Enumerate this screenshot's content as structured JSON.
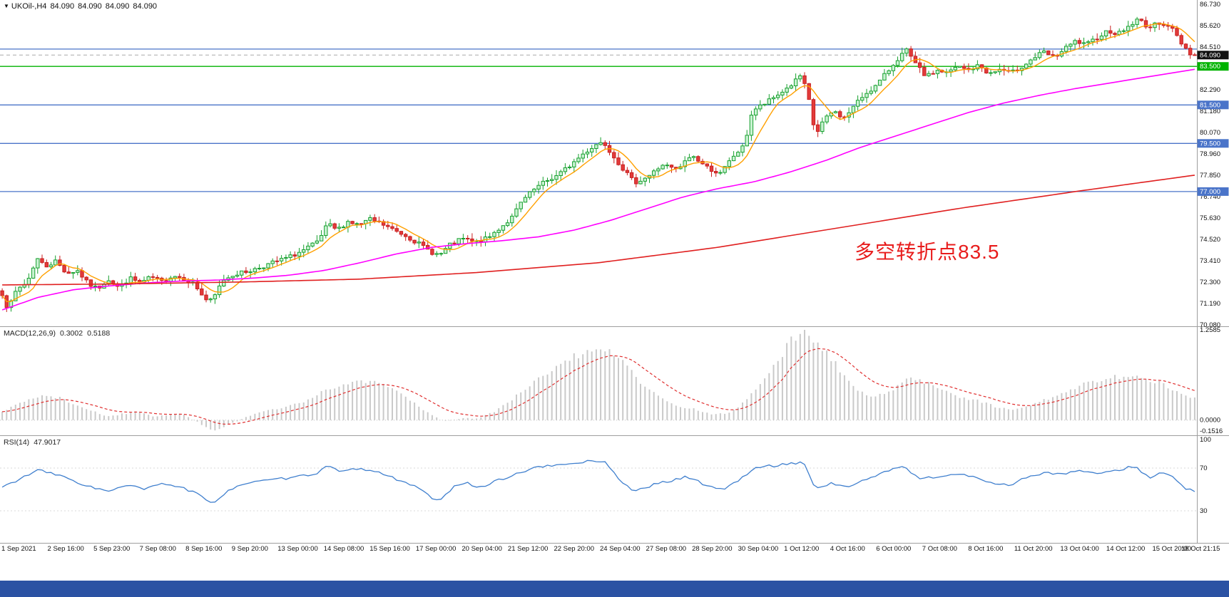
{
  "header": {
    "symbol": "UKOil-,H4",
    "open": "84.090",
    "high": "84.090",
    "low": "84.090",
    "close": "84.090"
  },
  "annotation": {
    "text": "多空转折点83.5",
    "color": "#e81c1c"
  },
  "chrome": {
    "bottom_bar_color": "#2b52a3",
    "separator_color": "#9e9e9e",
    "axis_border_color": "#9e9e9e"
  },
  "price_axis": {
    "ticks": [
      86.73,
      85.62,
      84.51,
      83.4,
      82.29,
      81.18,
      80.07,
      78.96,
      77.85,
      76.74,
      75.63,
      74.52,
      73.41,
      72.3,
      71.19,
      70.08
    ]
  },
  "price_panel": {
    "hlines": [
      {
        "price": 84.4,
        "color": "#4a74c9",
        "label": null,
        "label_bg": null
      },
      {
        "price": 83.5,
        "color": "#00b300",
        "label": "83.500",
        "label_bg": "#00b300"
      },
      {
        "price": 81.5,
        "color": "#4a74c9",
        "label": "81.500",
        "label_bg": "#4a74c9"
      },
      {
        "price": 79.5,
        "color": "#4a74c9",
        "label": "79.500",
        "label_bg": "#4a74c9"
      },
      {
        "price": 77.0,
        "color": "#4a74c9",
        "label": "77.000",
        "label_bg": "#4a74c9"
      }
    ],
    "current_price": {
      "value": 84.09,
      "label": "84.090",
      "label_bg": "#111111",
      "line_color": "#a8a8a8"
    },
    "ma_colors": {
      "fast": "#ffa000",
      "mid": "#ff00ff",
      "slow": "#e02020"
    },
    "candle_up_fill": "#c9f2d2",
    "candle_up_stroke": "#17a02e",
    "candle_down_fill": "#e23b3b",
    "candle_down_stroke": "#c91f1f"
  },
  "macd_panel": {
    "name": "MACD(12,26,9)",
    "value_main": "0.3002",
    "value_signal": "0.5188",
    "axis": [
      {
        "v": 1.2585,
        "label": "1.2585"
      },
      {
        "v": 0,
        "label": "0.0000"
      },
      {
        "v": -0.1516,
        "label": "-0.1516"
      }
    ],
    "bar_color": "#c9c9c9",
    "signal_color": "#e03030"
  },
  "rsi_panel": {
    "name": "RSI(14)",
    "value": "47.9017",
    "axis": [
      {
        "v": 100,
        "label": "100"
      },
      {
        "v": 70,
        "label": "70"
      },
      {
        "v": 30,
        "label": "30"
      }
    ],
    "levels": [
      70,
      30
    ],
    "line_color": "#3f7fce"
  },
  "time_axis": {
    "labels": [
      "1 Sep 2021",
      "2 Sep 16:00",
      "5 Sep 23:00",
      "7 Sep 08:00",
      "8 Sep 16:00",
      "9 Sep 20:00",
      "13 Sep 00:00",
      "14 Sep 08:00",
      "15 Sep 16:00",
      "17 Sep 00:00",
      "20 Sep 04:00",
      "21 Sep 12:00",
      "22 Sep 20:00",
      "24 Sep 04:00",
      "27 Sep 08:00",
      "28 Sep 20:00",
      "30 Sep 04:00",
      "1 Oct 12:00",
      "4 Oct 16:00",
      "6 Oct 00:00",
      "7 Oct 08:00",
      "8 Oct 16:00",
      "11 Oct 20:00",
      "13 Oct 04:00",
      "14 Oct 12:00",
      "15 Oct 20:00",
      "18 Oct 21:15"
    ]
  },
  "chart_data": {
    "type": "candlestick",
    "symbol": "UKOil-",
    "timeframe": "H4",
    "title": "UKOil-,H4 84.090 84.090 84.090 84.090",
    "last_price": 84.09,
    "price_range": {
      "min": 70.0,
      "max": 86.95
    },
    "candles_count": 270,
    "hline_levels": [
      84.4,
      83.5,
      81.5,
      79.5,
      77.0
    ],
    "price_path": [
      [
        0,
        71.7
      ],
      [
        0.005,
        70.85
      ],
      [
        0.012,
        71.9
      ],
      [
        0.021,
        72.3
      ],
      [
        0.029,
        73.55
      ],
      [
        0.036,
        73.1
      ],
      [
        0.045,
        73.4
      ],
      [
        0.054,
        72.75
      ],
      [
        0.063,
        72.9
      ],
      [
        0.072,
        72.2
      ],
      [
        0.08,
        71.95
      ],
      [
        0.089,
        72.45
      ],
      [
        0.098,
        72.0
      ],
      [
        0.107,
        72.5
      ],
      [
        0.116,
        72.25
      ],
      [
        0.125,
        72.55
      ],
      [
        0.134,
        72.3
      ],
      [
        0.143,
        72.65
      ],
      [
        0.152,
        72.5
      ],
      [
        0.161,
        72.2
      ],
      [
        0.17,
        71.4
      ],
      [
        0.176,
        71.3
      ],
      [
        0.185,
        72.4
      ],
      [
        0.194,
        72.7
      ],
      [
        0.206,
        72.85
      ],
      [
        0.218,
        73.1
      ],
      [
        0.229,
        73.35
      ],
      [
        0.241,
        73.6
      ],
      [
        0.253,
        73.95
      ],
      [
        0.265,
        74.4
      ],
      [
        0.273,
        75.3
      ],
      [
        0.281,
        75.0
      ],
      [
        0.29,
        75.45
      ],
      [
        0.299,
        75.25
      ],
      [
        0.308,
        75.55
      ],
      [
        0.317,
        75.35
      ],
      [
        0.328,
        75.0
      ],
      [
        0.339,
        74.7
      ],
      [
        0.349,
        74.3
      ],
      [
        0.36,
        73.85
      ],
      [
        0.367,
        73.7
      ],
      [
        0.375,
        74.2
      ],
      [
        0.386,
        74.55
      ],
      [
        0.397,
        74.35
      ],
      [
        0.408,
        74.6
      ],
      [
        0.417,
        75.1
      ],
      [
        0.427,
        75.6
      ],
      [
        0.436,
        76.5
      ],
      [
        0.446,
        77.1
      ],
      [
        0.455,
        77.5
      ],
      [
        0.466,
        77.85
      ],
      [
        0.477,
        78.4
      ],
      [
        0.488,
        79.0
      ],
      [
        0.498,
        79.45
      ],
      [
        0.504,
        79.6
      ],
      [
        0.519,
        78.3
      ],
      [
        0.53,
        77.45
      ],
      [
        0.542,
        77.8
      ],
      [
        0.554,
        78.4
      ],
      [
        0.566,
        78.1
      ],
      [
        0.578,
        78.9
      ],
      [
        0.59,
        78.3
      ],
      [
        0.602,
        77.9
      ],
      [
        0.614,
        78.9
      ],
      [
        0.623,
        79.4
      ],
      [
        0.627,
        80.9
      ],
      [
        0.632,
        81.3
      ],
      [
        0.638,
        81.5
      ],
      [
        0.65,
        82.0
      ],
      [
        0.662,
        82.55
      ],
      [
        0.67,
        83.05
      ],
      [
        0.676,
        81.9
      ],
      [
        0.682,
        79.9
      ],
      [
        0.688,
        80.6
      ],
      [
        0.697,
        81.2
      ],
      [
        0.706,
        80.8
      ],
      [
        0.715,
        81.5
      ],
      [
        0.724,
        82.1
      ],
      [
        0.733,
        82.5
      ],
      [
        0.742,
        83.2
      ],
      [
        0.751,
        83.9
      ],
      [
        0.758,
        84.35
      ],
      [
        0.766,
        83.6
      ],
      [
        0.775,
        82.95
      ],
      [
        0.784,
        83.3
      ],
      [
        0.793,
        83.15
      ],
      [
        0.801,
        83.5
      ],
      [
        0.81,
        83.3
      ],
      [
        0.819,
        83.55
      ],
      [
        0.828,
        83.1
      ],
      [
        0.837,
        83.35
      ],
      [
        0.846,
        83.15
      ],
      [
        0.855,
        83.5
      ],
      [
        0.864,
        83.9
      ],
      [
        0.873,
        84.25
      ],
      [
        0.882,
        83.95
      ],
      [
        0.891,
        84.4
      ],
      [
        0.9,
        84.8
      ],
      [
        0.909,
        84.6
      ],
      [
        0.918,
        85.0
      ],
      [
        0.927,
        85.35
      ],
      [
        0.936,
        85.2
      ],
      [
        0.945,
        85.6
      ],
      [
        0.953,
        85.95
      ],
      [
        0.962,
        85.5
      ],
      [
        0.971,
        85.8
      ],
      [
        0.98,
        85.55
      ],
      [
        0.989,
        84.7
      ],
      [
        0.996,
        84.2
      ],
      [
        1,
        84.09
      ]
    ],
    "ma_mid_path": [
      [
        0,
        70.85
      ],
      [
        0.03,
        71.5
      ],
      [
        0.06,
        71.9
      ],
      [
        0.09,
        72.1
      ],
      [
        0.12,
        72.25
      ],
      [
        0.15,
        72.35
      ],
      [
        0.18,
        72.4
      ],
      [
        0.21,
        72.5
      ],
      [
        0.24,
        72.65
      ],
      [
        0.27,
        72.9
      ],
      [
        0.3,
        73.3
      ],
      [
        0.33,
        73.75
      ],
      [
        0.36,
        74.1
      ],
      [
        0.39,
        74.3
      ],
      [
        0.42,
        74.45
      ],
      [
        0.45,
        74.65
      ],
      [
        0.48,
        75.0
      ],
      [
        0.51,
        75.5
      ],
      [
        0.54,
        76.1
      ],
      [
        0.57,
        76.7
      ],
      [
        0.6,
        77.15
      ],
      [
        0.63,
        77.5
      ],
      [
        0.66,
        78.0
      ],
      [
        0.69,
        78.6
      ],
      [
        0.72,
        79.3
      ],
      [
        0.75,
        79.9
      ],
      [
        0.78,
        80.5
      ],
      [
        0.81,
        81.1
      ],
      [
        0.84,
        81.6
      ],
      [
        0.87,
        82.0
      ],
      [
        0.9,
        82.35
      ],
      [
        0.93,
        82.65
      ],
      [
        0.96,
        82.95
      ],
      [
        1,
        83.35
      ]
    ],
    "ma_slow_path": [
      [
        0,
        72.15
      ],
      [
        0.1,
        72.2
      ],
      [
        0.2,
        72.3
      ],
      [
        0.3,
        72.45
      ],
      [
        0.4,
        72.8
      ],
      [
        0.5,
        73.3
      ],
      [
        0.6,
        74.1
      ],
      [
        0.7,
        75.1
      ],
      [
        0.8,
        76.1
      ],
      [
        0.9,
        77.0
      ],
      [
        1,
        77.85
      ]
    ],
    "indicators": {
      "macd": {
        "params": "12,26,9",
        "current": 0.3002,
        "signal_current": 0.5188,
        "max": 1.2585,
        "min": -0.1516,
        "path": [
          [
            0,
            0.12
          ],
          [
            0.02,
            0.28
          ],
          [
            0.035,
            0.35
          ],
          [
            0.05,
            0.3
          ],
          [
            0.07,
            0.15
          ],
          [
            0.09,
            0.05
          ],
          [
            0.11,
            0.12
          ],
          [
            0.13,
            0.05
          ],
          [
            0.15,
            0.1
          ],
          [
            0.163,
            -0.02
          ],
          [
            0.176,
            -0.1516
          ],
          [
            0.19,
            -0.06
          ],
          [
            0.21,
            0.08
          ],
          [
            0.23,
            0.16
          ],
          [
            0.25,
            0.24
          ],
          [
            0.27,
            0.4
          ],
          [
            0.29,
            0.52
          ],
          [
            0.31,
            0.54
          ],
          [
            0.325,
            0.46
          ],
          [
            0.34,
            0.3
          ],
          [
            0.355,
            0.12
          ],
          [
            0.37,
            -0.02
          ],
          [
            0.385,
            0.02
          ],
          [
            0.4,
            0.03
          ],
          [
            0.415,
            0.14
          ],
          [
            0.43,
            0.32
          ],
          [
            0.445,
            0.55
          ],
          [
            0.46,
            0.7
          ],
          [
            0.475,
            0.85
          ],
          [
            0.49,
            0.95
          ],
          [
            0.505,
            0.97
          ],
          [
            0.52,
            0.82
          ],
          [
            0.535,
            0.55
          ],
          [
            0.55,
            0.34
          ],
          [
            0.565,
            0.2
          ],
          [
            0.58,
            0.16
          ],
          [
            0.595,
            0.08
          ],
          [
            0.61,
            0.1
          ],
          [
            0.625,
            0.3
          ],
          [
            0.64,
            0.6
          ],
          [
            0.655,
            0.95
          ],
          [
            0.665,
            1.18
          ],
          [
            0.675,
            1.2585
          ],
          [
            0.685,
            1.05
          ],
          [
            0.7,
            0.75
          ],
          [
            0.715,
            0.45
          ],
          [
            0.73,
            0.3
          ],
          [
            0.745,
            0.42
          ],
          [
            0.76,
            0.58
          ],
          [
            0.775,
            0.52
          ],
          [
            0.79,
            0.42
          ],
          [
            0.805,
            0.32
          ],
          [
            0.82,
            0.26
          ],
          [
            0.835,
            0.18
          ],
          [
            0.85,
            0.14
          ],
          [
            0.865,
            0.22
          ],
          [
            0.88,
            0.32
          ],
          [
            0.895,
            0.42
          ],
          [
            0.91,
            0.52
          ],
          [
            0.925,
            0.58
          ],
          [
            0.94,
            0.62
          ],
          [
            0.955,
            0.6
          ],
          [
            0.97,
            0.52
          ],
          [
            0.985,
            0.4
          ],
          [
            1,
            0.3002
          ]
        ]
      },
      "rsi": {
        "period": 14,
        "current": 47.9017,
        "path": [
          [
            0,
            52
          ],
          [
            0.015,
            60
          ],
          [
            0.03,
            68
          ],
          [
            0.045,
            64
          ],
          [
            0.06,
            58
          ],
          [
            0.075,
            52
          ],
          [
            0.09,
            48
          ],
          [
            0.105,
            54
          ],
          [
            0.12,
            50
          ],
          [
            0.135,
            56
          ],
          [
            0.15,
            52
          ],
          [
            0.163,
            46
          ],
          [
            0.176,
            36
          ],
          [
            0.19,
            50
          ],
          [
            0.205,
            56
          ],
          [
            0.22,
            58
          ],
          [
            0.235,
            60
          ],
          [
            0.25,
            62
          ],
          [
            0.265,
            66
          ],
          [
            0.273,
            72
          ],
          [
            0.285,
            66
          ],
          [
            0.3,
            70
          ],
          [
            0.315,
            66
          ],
          [
            0.33,
            60
          ],
          [
            0.345,
            54
          ],
          [
            0.36,
            42
          ],
          [
            0.368,
            40
          ],
          [
            0.378,
            52
          ],
          [
            0.39,
            56
          ],
          [
            0.4,
            52
          ],
          [
            0.415,
            58
          ],
          [
            0.43,
            64
          ],
          [
            0.445,
            70
          ],
          [
            0.46,
            72
          ],
          [
            0.475,
            74
          ],
          [
            0.49,
            76
          ],
          [
            0.505,
            77
          ],
          [
            0.515,
            62
          ],
          [
            0.53,
            48
          ],
          [
            0.545,
            54
          ],
          [
            0.56,
            58
          ],
          [
            0.575,
            62
          ],
          [
            0.59,
            54
          ],
          [
            0.605,
            50
          ],
          [
            0.62,
            60
          ],
          [
            0.63,
            70
          ],
          [
            0.645,
            72
          ],
          [
            0.66,
            74
          ],
          [
            0.672,
            76
          ],
          [
            0.682,
            50
          ],
          [
            0.695,
            56
          ],
          [
            0.71,
            52
          ],
          [
            0.725,
            60
          ],
          [
            0.74,
            66
          ],
          [
            0.755,
            72
          ],
          [
            0.77,
            60
          ],
          [
            0.785,
            62
          ],
          [
            0.8,
            64
          ],
          [
            0.815,
            62
          ],
          [
            0.83,
            56
          ],
          [
            0.845,
            54
          ],
          [
            0.86,
            62
          ],
          [
            0.875,
            66
          ],
          [
            0.89,
            64
          ],
          [
            0.905,
            68
          ],
          [
            0.92,
            64
          ],
          [
            0.935,
            68
          ],
          [
            0.95,
            72
          ],
          [
            0.963,
            60
          ],
          [
            0.972,
            66
          ],
          [
            0.982,
            62
          ],
          [
            0.99,
            52
          ],
          [
            1,
            47.9
          ]
        ]
      }
    }
  }
}
